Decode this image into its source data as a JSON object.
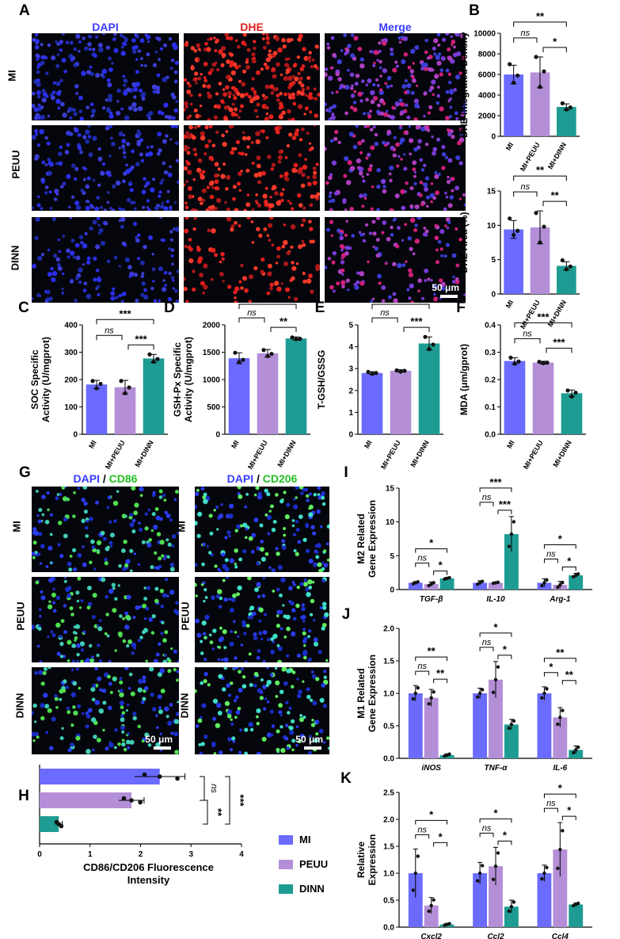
{
  "panels": {
    "A": {
      "label": "A",
      "channels": [
        "DAPI",
        "DHE",
        "Merge"
      ],
      "channel_colors": [
        "#3a3dff",
        "#e02020",
        "#3a3dff"
      ],
      "rows": [
        "MI",
        "PEUU",
        "DINN"
      ],
      "scale": "50 μm"
    },
    "G": {
      "label": "G",
      "left_title": {
        "a": "DAPI",
        "sep": " / ",
        "b": "CD86"
      },
      "right_title": {
        "a": "DAPI",
        "sep": " / ",
        "b": "CD206"
      },
      "rows": [
        "MI",
        "PEUU",
        "DINN"
      ],
      "scale": "50 μm"
    }
  },
  "colors": {
    "MI": "#6b6bff",
    "PEUU": "#b48fd8",
    "DINN": "#1e9c93"
  },
  "chart_data": [
    {
      "id": "B1",
      "label": "B",
      "type": "bar",
      "categories": [
        "MI",
        "MI+PEUU",
        "MI+DINN"
      ],
      "values": [
        6000,
        6200,
        2850
      ],
      "errors": [
        900,
        1500,
        300
      ],
      "points": [
        [
          7000,
          5200,
          5900
        ],
        [
          7700,
          4800,
          6300
        ],
        [
          3200,
          2600,
          2800
        ]
      ],
      "ylabel": "DHE Integrated Density",
      "ylim": [
        0,
        10000
      ],
      "ticks": [
        0,
        2000,
        4000,
        6000,
        8000,
        10000
      ],
      "sig": [
        {
          "a": 0,
          "b": 2,
          "t": "**"
        },
        {
          "a": 0,
          "b": 1,
          "t": "ns"
        },
        {
          "a": 1,
          "b": 2,
          "t": "*"
        }
      ]
    },
    {
      "id": "B2",
      "label": "",
      "type": "bar",
      "categories": [
        "MI",
        "MI+PEUU",
        "MI+DINN"
      ],
      "values": [
        9.4,
        9.7,
        4.1
      ],
      "errors": [
        1.3,
        2.4,
        0.6
      ],
      "points": [
        [
          11.0,
          8.6,
          9.2
        ],
        [
          11.8,
          7.5,
          9.8
        ],
        [
          4.9,
          3.6,
          4.0
        ]
      ],
      "ylabel": "DHE Area (%)",
      "ylim": [
        0,
        15
      ],
      "ticks": [
        0,
        5,
        10,
        15
      ],
      "sig": [
        {
          "a": 0,
          "b": 2,
          "t": "**"
        },
        {
          "a": 0,
          "b": 1,
          "t": "ns"
        },
        {
          "a": 1,
          "b": 2,
          "t": "**"
        }
      ]
    },
    {
      "id": "C",
      "label": "C",
      "type": "bar",
      "categories": [
        "MI",
        "MI+PEUU",
        "MI+DINN"
      ],
      "values": [
        182,
        172,
        277
      ],
      "errors": [
        15,
        25,
        15
      ],
      "points": [
        [
          195,
          168,
          184
        ],
        [
          195,
          150,
          171
        ],
        [
          292,
          265,
          275
        ]
      ],
      "ylabel": "SOC Specific Activity (U/mgprot)",
      "ylim": [
        0,
        400
      ],
      "ticks": [
        0,
        100,
        200,
        300,
        400
      ],
      "sig": [
        {
          "a": 0,
          "b": 2,
          "t": "***"
        },
        {
          "a": 0,
          "b": 1,
          "t": "ns"
        },
        {
          "a": 1,
          "b": 2,
          "t": "***"
        }
      ]
    },
    {
      "id": "D",
      "label": "D",
      "type": "bar",
      "categories": [
        "MI",
        "MI+PEUU",
        "MI+DINN"
      ],
      "values": [
        1390,
        1480,
        1750
      ],
      "errors": [
        100,
        70,
        30
      ],
      "points": [
        [
          1490,
          1320,
          1360
        ],
        [
          1540,
          1430,
          1470
        ],
        [
          1770,
          1740,
          1745
        ]
      ],
      "ylabel": "GSH-Px Specific Activity (U/mgprot)",
      "ylim": [
        0,
        2000
      ],
      "ticks": [
        0,
        500,
        1000,
        1500,
        2000
      ],
      "sig": [
        {
          "a": 0,
          "b": 2,
          "t": "**"
        },
        {
          "a": 0,
          "b": 1,
          "t": "ns"
        },
        {
          "a": 1,
          "b": 2,
          "t": "**"
        }
      ]
    },
    {
      "id": "E",
      "label": "E",
      "type": "bar",
      "categories": [
        "MI",
        "MI+PEUU",
        "MI+DINN"
      ],
      "values": [
        2.8,
        2.9,
        4.15
      ],
      "errors": [
        0.06,
        0.05,
        0.3
      ],
      "points": [
        [
          2.85,
          2.76,
          2.8
        ],
        [
          2.92,
          2.86,
          2.9
        ],
        [
          4.45,
          3.9,
          4.1
        ]
      ],
      "ylabel": "T-GSH/GSSG",
      "ylim": [
        0,
        5
      ],
      "ticks": [
        0,
        1,
        2,
        3,
        4,
        5
      ],
      "sig": [
        {
          "a": 0,
          "b": 2,
          "t": "***"
        },
        {
          "a": 0,
          "b": 1,
          "t": "ns"
        },
        {
          "a": 1,
          "b": 2,
          "t": "***"
        }
      ]
    },
    {
      "id": "F",
      "label": "F",
      "type": "bar",
      "categories": [
        "MI",
        "MI+PEUU",
        "MI+DINN"
      ],
      "values": [
        0.268,
        0.262,
        0.15
      ],
      "errors": [
        0.012,
        0.005,
        0.012
      ],
      "points": [
        [
          0.28,
          0.258,
          0.266
        ],
        [
          0.265,
          0.26,
          0.262
        ],
        [
          0.16,
          0.138,
          0.152
        ]
      ],
      "ylabel": "MDA (μm/gprot)",
      "ylim": [
        0,
        0.4
      ],
      "ticks": [
        0.0,
        0.1,
        0.2,
        0.3,
        0.4
      ],
      "sig": [
        {
          "a": 0,
          "b": 2,
          "t": "***"
        },
        {
          "a": 0,
          "b": 1,
          "t": "ns"
        },
        {
          "a": 1,
          "b": 2,
          "t": "***"
        }
      ]
    },
    {
      "id": "I",
      "label": "I",
      "type": "grouped_bar",
      "groups": [
        "TGF-β",
        "IL-10",
        "Arg-1"
      ],
      "values": [
        [
          1.0,
          0.8,
          1.65
        ],
        [
          1.0,
          1.0,
          8.2
        ],
        [
          1.0,
          0.7,
          2.1
        ]
      ],
      "errors": [
        [
          0.2,
          0.3,
          0.15
        ],
        [
          0.3,
          0.1,
          2.6
        ],
        [
          0.6,
          0.5,
          0.3
        ]
      ],
      "ylabel": "M2 Related Gene Expression",
      "ylim": [
        0,
        15
      ],
      "ticks": [
        0,
        5,
        10,
        15
      ],
      "sig": [
        [
          {
            "a": 0,
            "b": 2,
            "t": "*",
            "lvl": 1
          },
          {
            "a": 0,
            "b": 1,
            "t": "ns",
            "lvl": 0
          },
          {
            "a": 1,
            "b": 2,
            "t": "*",
            "lvl": 0
          }
        ],
        [
          {
            "a": 0,
            "b": 2,
            "t": "***",
            "lvl": 1
          },
          {
            "a": 0,
            "b": 1,
            "t": "ns",
            "lvl": 0
          },
          {
            "a": 1,
            "b": 2,
            "t": "***",
            "lvl": 0
          }
        ],
        [
          {
            "a": 0,
            "b": 2,
            "t": "*",
            "lvl": 1
          },
          {
            "a": 0,
            "b": 1,
            "t": "ns",
            "lvl": 0
          },
          {
            "a": 1,
            "b": 2,
            "t": "*",
            "lvl": 0
          }
        ]
      ]
    },
    {
      "id": "J",
      "label": "J",
      "type": "grouped_bar",
      "groups": [
        "iNOS",
        "TNF-α",
        "IL-6"
      ],
      "values": [
        [
          1.0,
          0.93,
          0.05
        ],
        [
          1.0,
          1.21,
          0.52
        ],
        [
          1.0,
          0.63,
          0.13
        ]
      ],
      "errors": [
        [
          0.12,
          0.13,
          0.02
        ],
        [
          0.08,
          0.28,
          0.08
        ],
        [
          0.1,
          0.15,
          0.06
        ]
      ],
      "ylabel": "M1 Related Gene Expression",
      "ylim": [
        0,
        2.0
      ],
      "ticks": [
        0.0,
        0.5,
        1.0,
        1.5,
        2.0
      ],
      "sig": [
        [
          {
            "a": 0,
            "b": 2,
            "t": "**",
            "lvl": 1
          },
          {
            "a": 0,
            "b": 1,
            "t": "ns",
            "lvl": 0
          },
          {
            "a": 1,
            "b": 2,
            "t": "**",
            "lvl": 0
          }
        ],
        [
          {
            "a": 0,
            "b": 2,
            "t": "*",
            "lvl": 1
          },
          {
            "a": 0,
            "b": 1,
            "t": "ns",
            "lvl": 0
          },
          {
            "a": 1,
            "b": 2,
            "t": "*",
            "lvl": 0
          }
        ],
        [
          {
            "a": 0,
            "b": 2,
            "t": "**",
            "lvl": 1
          },
          {
            "a": 0,
            "b": 1,
            "t": "*",
            "lvl": 0
          },
          {
            "a": 1,
            "b": 2,
            "t": "**",
            "lvl": 0
          }
        ]
      ]
    },
    {
      "id": "K",
      "label": "K",
      "type": "grouped_bar",
      "groups": [
        "Cxcl2",
        "Ccl2",
        "Ccl4"
      ],
      "values": [
        [
          1.0,
          0.4,
          0.05
        ],
        [
          1.0,
          1.13,
          0.38
        ],
        [
          1.0,
          1.44,
          0.42
        ]
      ],
      "errors": [
        [
          0.45,
          0.15,
          0.02
        ],
        [
          0.2,
          0.35,
          0.12
        ],
        [
          0.15,
          0.5,
          0.03
        ]
      ],
      "ylabel": "Relative Expression",
      "ylim": [
        0,
        2.5
      ],
      "ticks": [
        0.0,
        0.5,
        1.0,
        1.5,
        2.0,
        2.5
      ],
      "sig": [
        [
          {
            "a": 0,
            "b": 2,
            "t": "*",
            "lvl": 1
          },
          {
            "a": 0,
            "b": 1,
            "t": "ns",
            "lvl": 0
          },
          {
            "a": 1,
            "b": 2,
            "t": "*",
            "lvl": 0
          }
        ],
        [
          {
            "a": 0,
            "b": 2,
            "t": "*",
            "lvl": 1
          },
          {
            "a": 0,
            "b": 1,
            "t": "ns",
            "lvl": 0
          },
          {
            "a": 1,
            "b": 2,
            "t": "*",
            "lvl": 0
          }
        ],
        [
          {
            "a": 0,
            "b": 2,
            "t": "*",
            "lvl": 1
          },
          {
            "a": 0,
            "b": 1,
            "t": "ns",
            "lvl": 0
          },
          {
            "a": 1,
            "b": 2,
            "t": "*",
            "lvl": 0
          }
        ]
      ]
    },
    {
      "id": "H",
      "label": "H",
      "type": "hbar",
      "categories": [
        "MI",
        "PEUU",
        "DINN"
      ],
      "values": [
        2.38,
        1.82,
        0.38
      ],
      "errors": [
        0.5,
        0.25,
        0.07
      ],
      "xlabel": "CD86/CD206 Fluorescence Intensity",
      "xlim": [
        0,
        4
      ],
      "ticks": [
        0,
        1,
        2,
        3,
        4
      ],
      "sig": [
        {
          "a": 0,
          "b": 1,
          "t": "ns"
        },
        {
          "a": 1,
          "b": 2,
          "t": "**"
        },
        {
          "a": 0,
          "b": 2,
          "t": "***"
        }
      ],
      "legend": [
        "MI",
        "PEUU",
        "DINN"
      ]
    }
  ]
}
